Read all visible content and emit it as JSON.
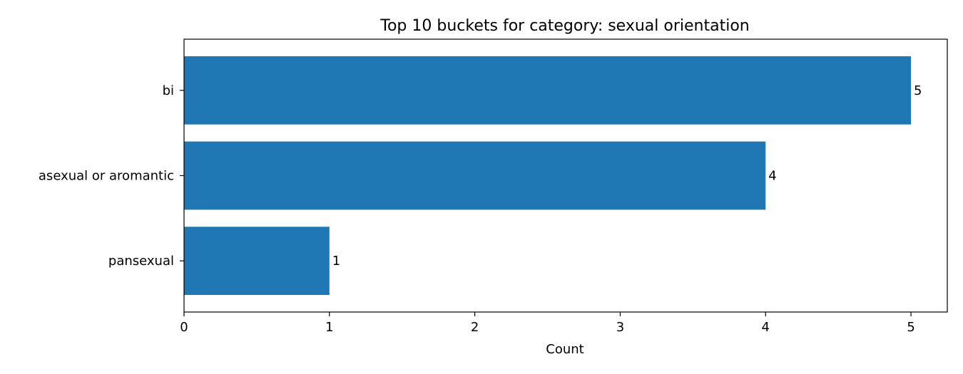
{
  "chart_data": {
    "type": "bar",
    "orientation": "horizontal",
    "title": "Top 10 buckets for category: sexual orientation",
    "xlabel": "Count",
    "ylabel": "",
    "categories": [
      "bi",
      "asexual or aromantic",
      "pansexual"
    ],
    "values": [
      5,
      4,
      1
    ],
    "data_labels": [
      "5",
      "4",
      "1"
    ],
    "xlim": [
      0,
      5.25
    ],
    "xticks": [
      "0",
      "1",
      "2",
      "3",
      "4",
      "5"
    ],
    "grid": false,
    "legend": "none",
    "bar_color": "#1f77b4"
  }
}
